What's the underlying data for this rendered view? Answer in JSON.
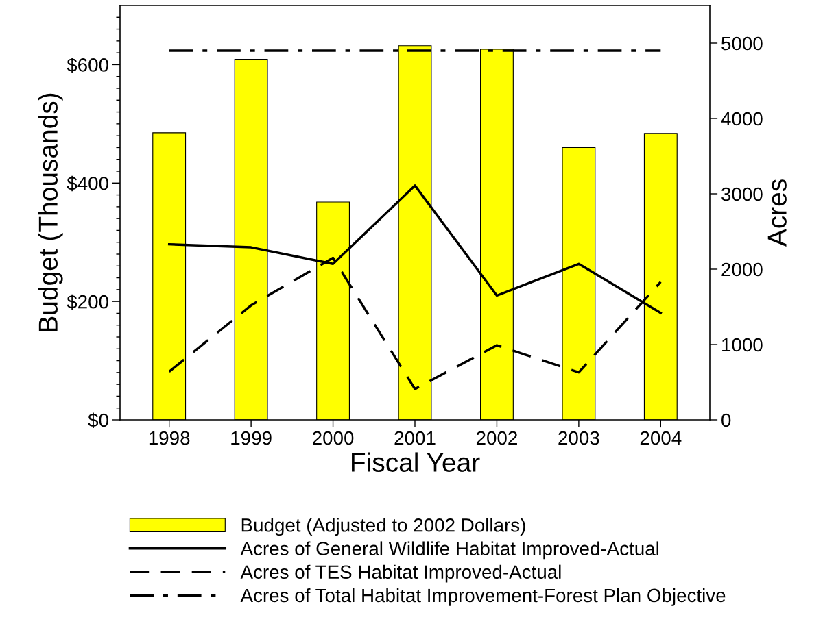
{
  "chart_data": {
    "type": "bar",
    "xlabel": "Fiscal Year",
    "ylabel": "Budget (Thousands)",
    "y2label": "Acres",
    "categories": [
      "1998",
      "1999",
      "2000",
      "2001",
      "2002",
      "2003",
      "2004"
    ],
    "series": [
      {
        "name": "Budget (Adjusted to 2002 Dollars)",
        "color": "#ffff00",
        "values": [
          485,
          609,
          368,
          632,
          626,
          460,
          484
        ]
      },
      {
        "name": "Acres of General Wildlife Habitat Improved-Actual",
        "type": "line",
        "axis": "y2",
        "color": "#000000",
        "line_style": "solid",
        "values": [
          2330,
          2290,
          2070,
          3110,
          1650,
          2070,
          1420
        ]
      },
      {
        "name": "Acres of TES Habitat Improved-Actual",
        "type": "line",
        "axis": "y2",
        "color": "#000000",
        "line_style": "dashed",
        "values": [
          640,
          1520,
          2150,
          410,
          990,
          630,
          1830
        ]
      },
      {
        "name": "Acres of Total Habitat Improvement-Forest Plan Objective",
        "type": "line",
        "axis": "y2",
        "color": "#000000",
        "line_style": "dashdot",
        "values": [
          4900,
          4900,
          4900,
          4900,
          4900,
          4900,
          4900
        ]
      }
    ],
    "ylim": [
      0,
      700
    ],
    "yticks": [
      {
        "value": 0,
        "label": "$0"
      },
      {
        "value": 20,
        "label": null
      },
      {
        "value": 40,
        "label": null
      },
      {
        "value": 60,
        "label": null
      },
      {
        "value": 80,
        "label": null
      },
      {
        "value": 100,
        "label": null
      },
      {
        "value": 120,
        "label": null
      },
      {
        "value": 140,
        "label": null
      },
      {
        "value": 160,
        "label": null
      },
      {
        "value": 180,
        "label": null
      },
      {
        "value": 200,
        "label": "$200"
      },
      {
        "value": 220,
        "label": null
      },
      {
        "value": 240,
        "label": null
      },
      {
        "value": 260,
        "label": null
      },
      {
        "value": 280,
        "label": null
      },
      {
        "value": 300,
        "label": null
      },
      {
        "value": 320,
        "label": null
      },
      {
        "value": 340,
        "label": null
      },
      {
        "value": 360,
        "label": null
      },
      {
        "value": 380,
        "label": null
      },
      {
        "value": 400,
        "label": "$400"
      },
      {
        "value": 420,
        "label": null
      },
      {
        "value": 440,
        "label": null
      },
      {
        "value": 460,
        "label": null
      },
      {
        "value": 480,
        "label": null
      },
      {
        "value": 500,
        "label": null
      },
      {
        "value": 520,
        "label": null
      },
      {
        "value": 540,
        "label": null
      },
      {
        "value": 560,
        "label": null
      },
      {
        "value": 580,
        "label": null
      },
      {
        "value": 600,
        "label": "$600"
      },
      {
        "value": 620,
        "label": null
      },
      {
        "value": 640,
        "label": null
      },
      {
        "value": 660,
        "label": null
      },
      {
        "value": 680,
        "label": null
      }
    ],
    "y2lim": [
      0,
      5500
    ],
    "y2ticks": [
      0,
      1000,
      2000,
      3000,
      4000,
      5000
    ],
    "legend": "bottom",
    "grid": false
  }
}
